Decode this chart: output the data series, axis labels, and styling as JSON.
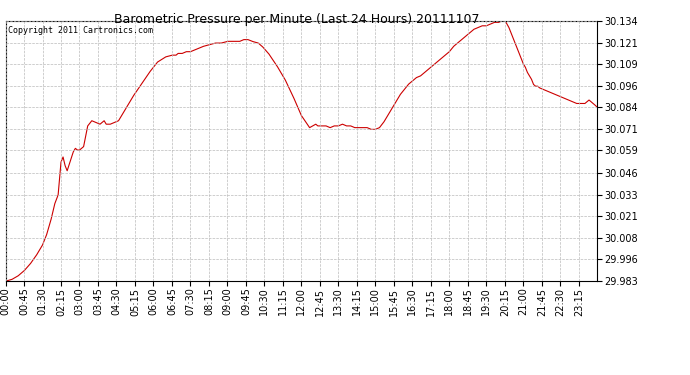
{
  "title": "Barometric Pressure per Minute (Last 24 Hours) 20111107",
  "copyright": "Copyright 2011 Cartronics.com",
  "line_color": "#cc0000",
  "background_color": "#ffffff",
  "grid_color": "#bbbbbb",
  "ylim": [
    29.983,
    30.134
  ],
  "yticks": [
    29.983,
    29.996,
    30.008,
    30.021,
    30.033,
    30.046,
    30.059,
    30.071,
    30.084,
    30.096,
    30.109,
    30.121,
    30.134
  ],
  "xtick_labels": [
    "00:00",
    "00:45",
    "01:30",
    "02:15",
    "03:00",
    "03:45",
    "04:30",
    "05:15",
    "06:00",
    "06:45",
    "07:30",
    "08:15",
    "09:00",
    "09:45",
    "10:30",
    "11:15",
    "12:00",
    "12:45",
    "13:30",
    "14:15",
    "15:00",
    "15:45",
    "16:30",
    "17:15",
    "18:00",
    "18:45",
    "19:30",
    "20:15",
    "21:00",
    "21:45",
    "22:30",
    "23:15"
  ],
  "waypoints": [
    [
      0,
      29.983
    ],
    [
      15,
      29.984
    ],
    [
      30,
      29.986
    ],
    [
      45,
      29.989
    ],
    [
      60,
      29.993
    ],
    [
      75,
      29.998
    ],
    [
      90,
      30.004
    ],
    [
      100,
      30.01
    ],
    [
      110,
      30.018
    ],
    [
      120,
      30.028
    ],
    [
      128,
      30.033
    ],
    [
      135,
      30.052
    ],
    [
      140,
      30.055
    ],
    [
      145,
      30.05
    ],
    [
      150,
      30.047
    ],
    [
      158,
      30.053
    ],
    [
      165,
      30.058
    ],
    [
      170,
      30.06
    ],
    [
      175,
      30.059
    ],
    [
      180,
      30.059
    ],
    [
      190,
      30.061
    ],
    [
      200,
      30.073
    ],
    [
      210,
      30.076
    ],
    [
      220,
      30.075
    ],
    [
      230,
      30.074
    ],
    [
      235,
      30.075
    ],
    [
      240,
      30.076
    ],
    [
      245,
      30.074
    ],
    [
      255,
      30.074
    ],
    [
      265,
      30.075
    ],
    [
      275,
      30.076
    ],
    [
      290,
      30.082
    ],
    [
      310,
      30.09
    ],
    [
      330,
      30.097
    ],
    [
      350,
      30.104
    ],
    [
      370,
      30.11
    ],
    [
      390,
      30.113
    ],
    [
      405,
      30.114
    ],
    [
      415,
      30.114
    ],
    [
      420,
      30.115
    ],
    [
      430,
      30.115
    ],
    [
      440,
      30.116
    ],
    [
      450,
      30.116
    ],
    [
      460,
      30.117
    ],
    [
      470,
      30.118
    ],
    [
      480,
      30.119
    ],
    [
      495,
      30.12
    ],
    [
      510,
      30.121
    ],
    [
      525,
      30.121
    ],
    [
      540,
      30.122
    ],
    [
      555,
      30.122
    ],
    [
      570,
      30.122
    ],
    [
      580,
      30.123
    ],
    [
      590,
      30.123
    ],
    [
      600,
      30.122
    ],
    [
      615,
      30.121
    ],
    [
      625,
      30.119
    ],
    [
      640,
      30.115
    ],
    [
      660,
      30.108
    ],
    [
      680,
      30.1
    ],
    [
      700,
      30.09
    ],
    [
      720,
      30.079
    ],
    [
      740,
      30.072
    ],
    [
      755,
      30.074
    ],
    [
      760,
      30.073
    ],
    [
      770,
      30.073
    ],
    [
      780,
      30.073
    ],
    [
      790,
      30.072
    ],
    [
      800,
      30.073
    ],
    [
      810,
      30.073
    ],
    [
      820,
      30.074
    ],
    [
      830,
      30.073
    ],
    [
      840,
      30.073
    ],
    [
      850,
      30.072
    ],
    [
      860,
      30.072
    ],
    [
      870,
      30.072
    ],
    [
      880,
      30.072
    ],
    [
      890,
      30.071
    ],
    [
      900,
      30.071
    ],
    [
      910,
      30.072
    ],
    [
      920,
      30.075
    ],
    [
      930,
      30.079
    ],
    [
      940,
      30.083
    ],
    [
      950,
      30.087
    ],
    [
      960,
      30.091
    ],
    [
      970,
      30.094
    ],
    [
      980,
      30.097
    ],
    [
      990,
      30.099
    ],
    [
      1000,
      30.101
    ],
    [
      1010,
      30.102
    ],
    [
      1020,
      30.104
    ],
    [
      1030,
      30.106
    ],
    [
      1040,
      30.108
    ],
    [
      1050,
      30.11
    ],
    [
      1060,
      30.112
    ],
    [
      1070,
      30.114
    ],
    [
      1080,
      30.116
    ],
    [
      1090,
      30.119
    ],
    [
      1100,
      30.121
    ],
    [
      1110,
      30.123
    ],
    [
      1120,
      30.125
    ],
    [
      1130,
      30.127
    ],
    [
      1140,
      30.129
    ],
    [
      1150,
      30.13
    ],
    [
      1160,
      30.131
    ],
    [
      1170,
      30.131
    ],
    [
      1180,
      30.132
    ],
    [
      1190,
      30.133
    ],
    [
      1200,
      30.133
    ],
    [
      1210,
      30.134
    ],
    [
      1215,
      30.134
    ],
    [
      1218,
      30.133
    ],
    [
      1225,
      30.13
    ],
    [
      1230,
      30.127
    ],
    [
      1235,
      30.124
    ],
    [
      1240,
      30.121
    ],
    [
      1245,
      30.118
    ],
    [
      1250,
      30.115
    ],
    [
      1255,
      30.112
    ],
    [
      1260,
      30.109
    ],
    [
      1265,
      30.107
    ],
    [
      1270,
      30.104
    ],
    [
      1275,
      30.102
    ],
    [
      1280,
      30.1
    ],
    [
      1285,
      30.097
    ],
    [
      1290,
      30.096
    ],
    [
      1295,
      30.096
    ],
    [
      1300,
      30.095
    ],
    [
      1310,
      30.094
    ],
    [
      1320,
      30.093
    ],
    [
      1330,
      30.092
    ],
    [
      1340,
      30.091
    ],
    [
      1350,
      30.09
    ],
    [
      1360,
      30.089
    ],
    [
      1370,
      30.088
    ],
    [
      1380,
      30.087
    ],
    [
      1390,
      30.086
    ],
    [
      1400,
      30.086
    ],
    [
      1410,
      30.086
    ],
    [
      1415,
      30.087
    ],
    [
      1420,
      30.088
    ],
    [
      1425,
      30.087
    ],
    [
      1430,
      30.086
    ],
    [
      1435,
      30.085
    ],
    [
      1439,
      30.084
    ]
  ]
}
